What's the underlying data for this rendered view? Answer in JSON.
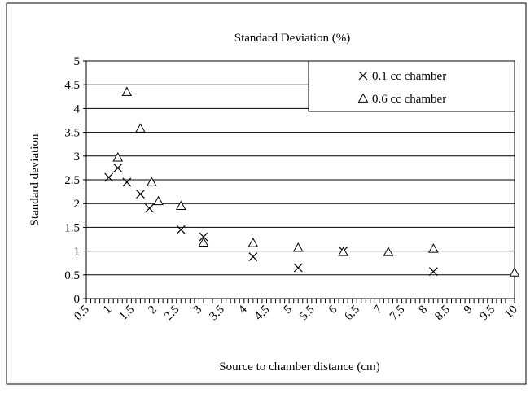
{
  "chart_data": {
    "type": "scatter",
    "title": "Standard Deviation (%)",
    "xlabel": "Source to chamber distance (cm)",
    "ylabel": "Standard deviation",
    "xlim": [
      0.5,
      10
    ],
    "ylim": [
      0,
      5
    ],
    "x_ticks": [
      "0.5",
      "1",
      "1.5",
      "2",
      "2.5",
      "3",
      "3.5",
      "4",
      "4.5",
      "5",
      "5.5",
      "6",
      "6.5",
      "7",
      "7.5",
      "8",
      "8.5",
      "9",
      "9.5",
      "10"
    ],
    "y_ticks": [
      "0",
      "0.5",
      "1",
      "1.5",
      "2",
      "2.5",
      "3",
      "3.5",
      "4",
      "4.5",
      "5"
    ],
    "grid": "horizontal",
    "legend_position": "top-right",
    "series": [
      {
        "name": "0.1 cc chamber",
        "marker": "x",
        "x": [
          1.0,
          1.2,
          1.4,
          1.7,
          1.9,
          2.6,
          3.1,
          4.2,
          5.2,
          6.2,
          8.2
        ],
        "y": [
          2.55,
          2.75,
          2.45,
          2.2,
          1.9,
          1.45,
          1.3,
          0.88,
          0.65,
          1.0,
          0.57
        ]
      },
      {
        "name": "0.6 cc chamber",
        "marker": "triangle",
        "x": [
          1.2,
          1.4,
          1.7,
          1.95,
          2.1,
          2.6,
          3.1,
          4.2,
          5.2,
          6.2,
          7.2,
          8.2,
          10.0
        ],
        "y": [
          2.97,
          4.35,
          3.58,
          2.45,
          2.05,
          1.95,
          1.18,
          1.17,
          1.07,
          0.98,
          0.98,
          1.05,
          0.55
        ]
      }
    ]
  }
}
